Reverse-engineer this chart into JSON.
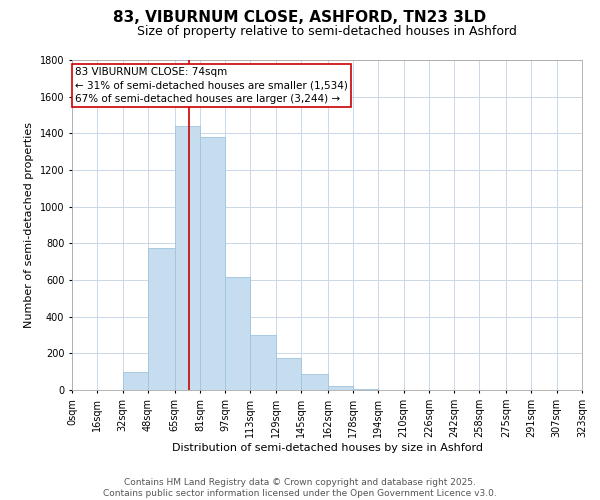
{
  "title": "83, VIBURNUM CLOSE, ASHFORD, TN23 3LD",
  "subtitle": "Size of property relative to semi-detached houses in Ashford",
  "xlabel": "Distribution of semi-detached houses by size in Ashford",
  "ylabel": "Number of semi-detached properties",
  "bar_color": "#c5ddef",
  "bar_edge_color": "#a0c4df",
  "background_color": "#ffffff",
  "grid_color": "#c8d8e8",
  "annotation_box_color": "#ffffff",
  "annotation_box_edge": "#cc0000",
  "red_line_color": "#cc0000",
  "bin_edges": [
    0,
    16,
    32,
    48,
    65,
    81,
    97,
    113,
    129,
    145,
    162,
    178,
    194,
    210,
    226,
    242,
    258,
    275,
    291,
    307,
    323
  ],
  "bin_labels": [
    "0sqm",
    "16sqm",
    "32sqm",
    "48sqm",
    "65sqm",
    "81sqm",
    "97sqm",
    "113sqm",
    "129sqm",
    "145sqm",
    "162sqm",
    "178sqm",
    "194sqm",
    "210sqm",
    "226sqm",
    "242sqm",
    "258sqm",
    "275sqm",
    "291sqm",
    "307sqm",
    "323sqm"
  ],
  "bar_heights": [
    0,
    0,
    100,
    775,
    1440,
    1380,
    615,
    300,
    175,
    90,
    20,
    5,
    0,
    0,
    0,
    0,
    0,
    0,
    0,
    0
  ],
  "ylim": [
    0,
    1800
  ],
  "yticks": [
    0,
    200,
    400,
    600,
    800,
    1000,
    1200,
    1400,
    1600,
    1800
  ],
  "red_line_x": 74,
  "annotation_text_line1": "83 VIBURNUM CLOSE: 74sqm",
  "annotation_text_line2": "← 31% of semi-detached houses are smaller (1,534)",
  "annotation_text_line3": "67% of semi-detached houses are larger (3,244) →",
  "footer_line1": "Contains HM Land Registry data © Crown copyright and database right 2025.",
  "footer_line2": "Contains public sector information licensed under the Open Government Licence v3.0.",
  "title_fontsize": 11,
  "subtitle_fontsize": 9,
  "axis_label_fontsize": 8,
  "tick_fontsize": 7,
  "annotation_fontsize": 7.5,
  "footer_fontsize": 6.5
}
